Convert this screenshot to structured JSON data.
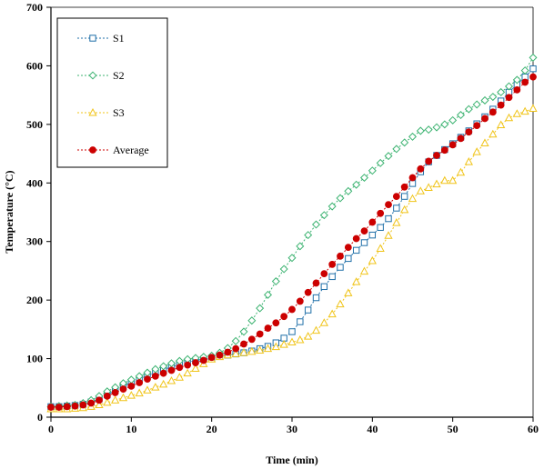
{
  "chart_data": {
    "type": "line",
    "title": "",
    "xlabel": "Time (min)",
    "ylabel": "Temperature  (°C)",
    "xlim": [
      0,
      60
    ],
    "ylim": [
      0,
      700
    ],
    "xticks": [
      "0",
      "10",
      "20",
      "30",
      "40",
      "50",
      "60"
    ],
    "yticks": [
      "0",
      "100",
      "200",
      "300",
      "400",
      "500",
      "600",
      "700"
    ],
    "grid": false,
    "legend": "top-left",
    "x": [
      0,
      1,
      2,
      3,
      4,
      5,
      6,
      7,
      8,
      9,
      10,
      11,
      12,
      13,
      14,
      15,
      16,
      17,
      18,
      19,
      20,
      21,
      22,
      23,
      24,
      25,
      26,
      27,
      28,
      29,
      30,
      31,
      32,
      33,
      34,
      35,
      36,
      37,
      38,
      39,
      40,
      41,
      42,
      43,
      44,
      45,
      46,
      47,
      48,
      49,
      50,
      51,
      52,
      53,
      54,
      55,
      56,
      57,
      58,
      59,
      60
    ],
    "series": [
      {
        "name": "S1",
        "color": "#1f6fa8",
        "marker": "square",
        "values": [
          18,
          18,
          19,
          20,
          22,
          26,
          31,
          38,
          46,
          53,
          59,
          65,
          71,
          76,
          81,
          86,
          90,
          94,
          97,
          99,
          101,
          104,
          106,
          108,
          110,
          113,
          117,
          121,
          127,
          135,
          146,
          163,
          183,
          204,
          223,
          240,
          256,
          271,
          285,
          298,
          311,
          324,
          339,
          357,
          377,
          399,
          419,
          436,
          447,
          457,
          467,
          478,
          489,
          501,
          513,
          526,
          540,
          555,
          568,
          581,
          595
        ]
      },
      {
        "name": "S2",
        "color": "#3cb371",
        "marker": "diamond",
        "values": [
          18,
          19,
          20,
          21,
          24,
          29,
          36,
          44,
          51,
          58,
          64,
          70,
          76,
          82,
          87,
          92,
          96,
          99,
          101,
          103,
          105,
          110,
          118,
          130,
          146,
          165,
          186,
          209,
          232,
          253,
          272,
          292,
          311,
          329,
          345,
          360,
          374,
          386,
          397,
          409,
          421,
          434,
          446,
          458,
          469,
          479,
          489,
          491,
          495,
          500,
          507,
          516,
          526,
          534,
          541,
          547,
          555,
          565,
          576,
          592,
          614
        ]
      },
      {
        "name": "S3",
        "color": "#f0c419",
        "marker": "triangle",
        "values": [
          14,
          14,
          14,
          15,
          16,
          18,
          21,
          25,
          29,
          33,
          37,
          41,
          46,
          51,
          56,
          62,
          68,
          75,
          83,
          91,
          99,
          103,
          106,
          108,
          110,
          112,
          114,
          117,
          120,
          124,
          128,
          132,
          138,
          148,
          161,
          176,
          193,
          212,
          231,
          249,
          267,
          288,
          310,
          332,
          354,
          373,
          386,
          392,
          398,
          404,
          404,
          418,
          436,
          453,
          468,
          483,
          499,
          511,
          518,
          522,
          527
        ]
      },
      {
        "name": "Average",
        "color": "#cc0000",
        "marker": "circle",
        "values": [
          17,
          17,
          18,
          19,
          21,
          24,
          29,
          36,
          42,
          48,
          53,
          59,
          65,
          70,
          75,
          80,
          85,
          89,
          93,
          97,
          102,
          106,
          111,
          117,
          125,
          133,
          142,
          152,
          161,
          172,
          184,
          198,
          213,
          229,
          245,
          261,
          275,
          290,
          305,
          318,
          333,
          348,
          363,
          377,
          393,
          409,
          424,
          437,
          447,
          456,
          465,
          476,
          487,
          498,
          510,
          521,
          533,
          546,
          559,
          572,
          581
        ]
      }
    ]
  }
}
